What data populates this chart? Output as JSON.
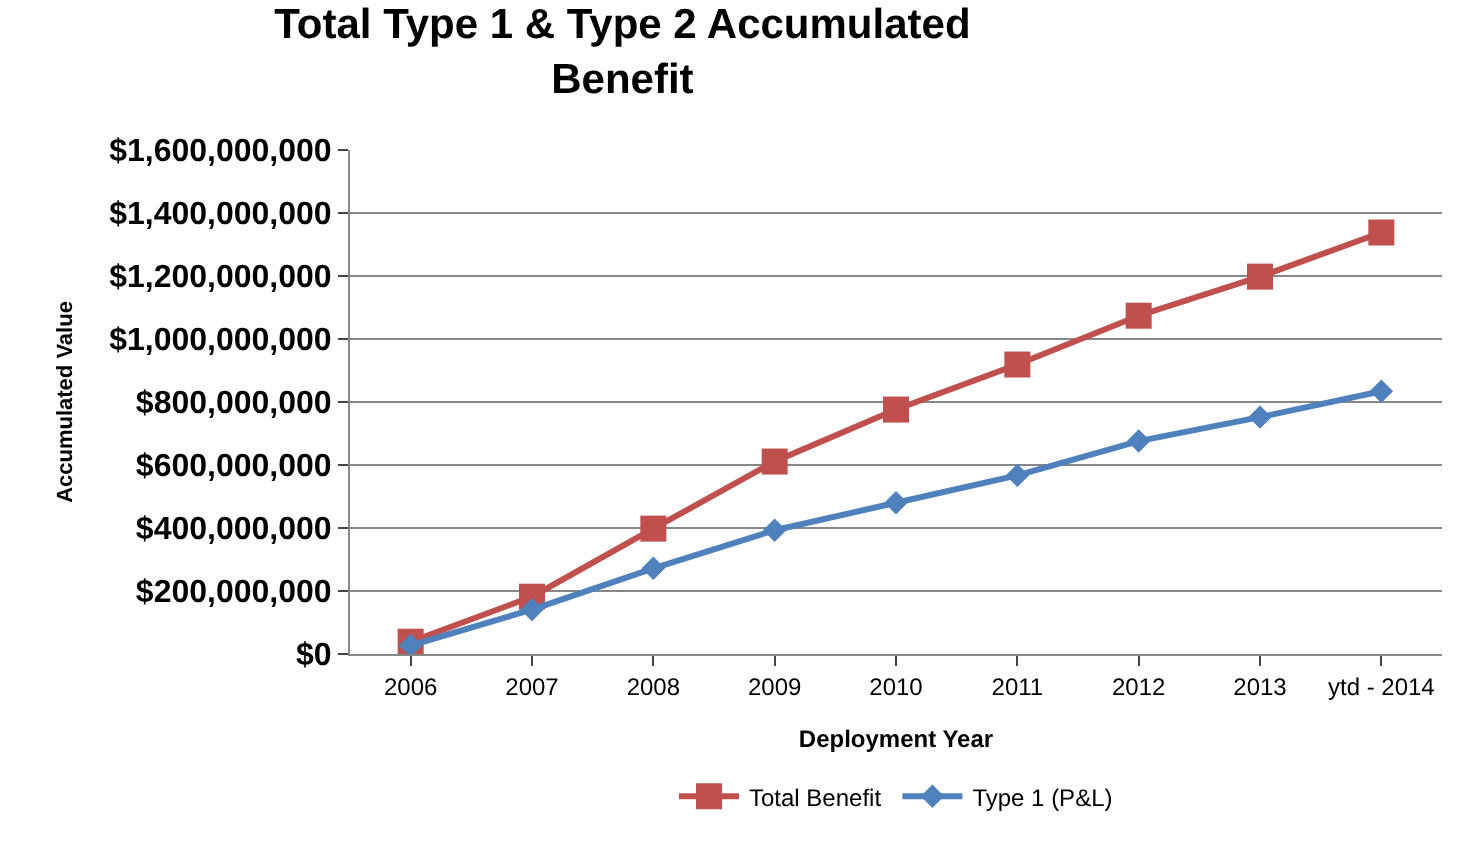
{
  "chart_data": {
    "type": "line",
    "title": "Total Type 1 & Type 2 Accumulated\nBenefit",
    "xlabel": "Deployment Year",
    "ylabel": "Accumulated Value",
    "categories": [
      "2006",
      "2007",
      "2008",
      "2009",
      "2010",
      "2011",
      "2012",
      "2013",
      "ytd - 2014"
    ],
    "series": [
      {
        "name": "Total Benefit",
        "color": "#c0504d",
        "marker": "square",
        "values": [
          39000000,
          182000000,
          398000000,
          611000000,
          776000000,
          919000000,
          1074000000,
          1198000000,
          1338000000
        ]
      },
      {
        "name": "Type 1 (P&L)",
        "color": "#4f81bd",
        "marker": "diamond",
        "values": [
          27000000,
          141000000,
          272000000,
          393000000,
          480000000,
          567000000,
          676000000,
          752000000,
          834000000
        ]
      }
    ],
    "ylim": [
      0,
      1600000000
    ],
    "yticks": [
      {
        "value": 0,
        "label": "$0"
      },
      {
        "value": 200000000,
        "label": "$200,000,000"
      },
      {
        "value": 400000000,
        "label": "$400,000,000"
      },
      {
        "value": 600000000,
        "label": "$600,000,000"
      },
      {
        "value": 800000000,
        "label": "$800,000,000"
      },
      {
        "value": 1000000000,
        "label": "$1,000,000,000"
      },
      {
        "value": 1200000000,
        "label": "$1,200,000,000"
      },
      {
        "value": 1400000000,
        "label": "$1,400,000,000"
      },
      {
        "value": 1600000000,
        "label": "$1,600,000,000"
      }
    ],
    "grid": "y",
    "legend": "bottom",
    "line_style": "solid"
  }
}
